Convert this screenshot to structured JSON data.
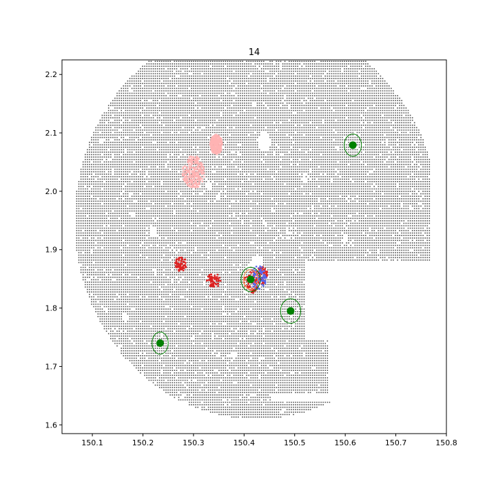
{
  "chart_data": {
    "type": "scatter",
    "title": "14",
    "xlabel": "",
    "ylabel": "",
    "xlim": [
      150.04,
      150.8
    ],
    "ylim": [
      1.585,
      2.225
    ],
    "xticks": [
      150.1,
      150.2,
      150.3,
      150.4,
      150.5,
      150.6,
      150.7,
      150.8
    ],
    "yticks": [
      1.6,
      1.7,
      1.8,
      1.9,
      2.0,
      2.1,
      2.2
    ],
    "xtick_labels": [
      "150.1",
      "150.2",
      "150.3",
      "150.4",
      "150.5",
      "150.6",
      "150.7",
      "150.8"
    ],
    "ytick_labels": [
      "1.6",
      "1.7",
      "1.8",
      "1.9",
      "2.0",
      "2.1",
      "2.2"
    ],
    "grid": false,
    "colors": {
      "grid_points": "#4d4d4d",
      "pink_points": "#ffb3b3",
      "red_points": "#dd2222",
      "blue_points": "#5566ee",
      "markers": "#008000",
      "rings": "#008000",
      "orange_ring": "#ff9f4a"
    },
    "field_grid": {
      "description": "dense grid of source positions covering a circular field",
      "center": [
        150.425,
        1.95
      ],
      "radius_x": 0.36,
      "radius_y": 0.34,
      "step": 0.0042,
      "y_min": 1.605,
      "x_max": 150.77,
      "cutout_box": [
        150.455,
        1.64,
        150.77,
        1.88
      ],
      "extra_rect": [
        150.487,
        1.655,
        150.566,
        1.745
      ]
    },
    "holes": [
      [
        150.44,
        2.085,
        0.012,
        0.018
      ],
      [
        150.33,
        2.01,
        0.006,
        0.008
      ],
      [
        150.425,
        1.875,
        0.012,
        0.016
      ],
      [
        150.22,
        1.93,
        0.008,
        0.01
      ],
      [
        150.165,
        1.785,
        0.006,
        0.008
      ],
      [
        150.35,
        1.99,
        0.004,
        0.006
      ],
      [
        150.18,
        1.96,
        0.004,
        0.005
      ],
      [
        150.38,
        1.72,
        0.005,
        0.006
      ],
      [
        150.3,
        1.75,
        0.004,
        0.005
      ],
      [
        150.52,
        2.02,
        0.005,
        0.006
      ],
      [
        150.6,
        1.92,
        0.004,
        0.006
      ],
      [
        150.25,
        2.06,
        0.003,
        0.005
      ],
      [
        150.2,
        1.66,
        0.004,
        0.005
      ],
      [
        150.42,
        2.15,
        0.004,
        0.005
      ]
    ],
    "pink_clusters": [
      [
        150.3,
        2.033,
        0.022,
        0.028
      ],
      [
        150.345,
        2.08,
        0.012,
        0.017
      ]
    ],
    "red_clusters": [
      [
        150.275,
        1.875,
        0.012,
        0.012
      ],
      [
        150.34,
        1.847,
        0.015,
        0.012
      ],
      [
        150.435,
        1.855,
        0.012,
        0.016
      ],
      [
        150.415,
        1.845,
        0.015,
        0.02
      ]
    ],
    "blue_clusters": [
      [
        150.428,
        1.852,
        0.016,
        0.02
      ]
    ],
    "markers": {
      "name": "",
      "x": [
        150.615,
        150.413,
        150.492,
        150.234
      ],
      "y": [
        2.079,
        1.849,
        1.795,
        1.74
      ]
    },
    "rings": {
      "x": [
        150.615,
        150.413,
        150.492,
        150.234
      ],
      "y": [
        2.079,
        1.849,
        1.795,
        1.74
      ],
      "rx": [
        0.017,
        0.019,
        0.02,
        0.016
      ],
      "ry": [
        0.019,
        0.021,
        0.021,
        0.019
      ]
    },
    "orange_ring": {
      "x": 150.413,
      "y": 1.849,
      "rx": 0.014,
      "ry": 0.017
    }
  }
}
